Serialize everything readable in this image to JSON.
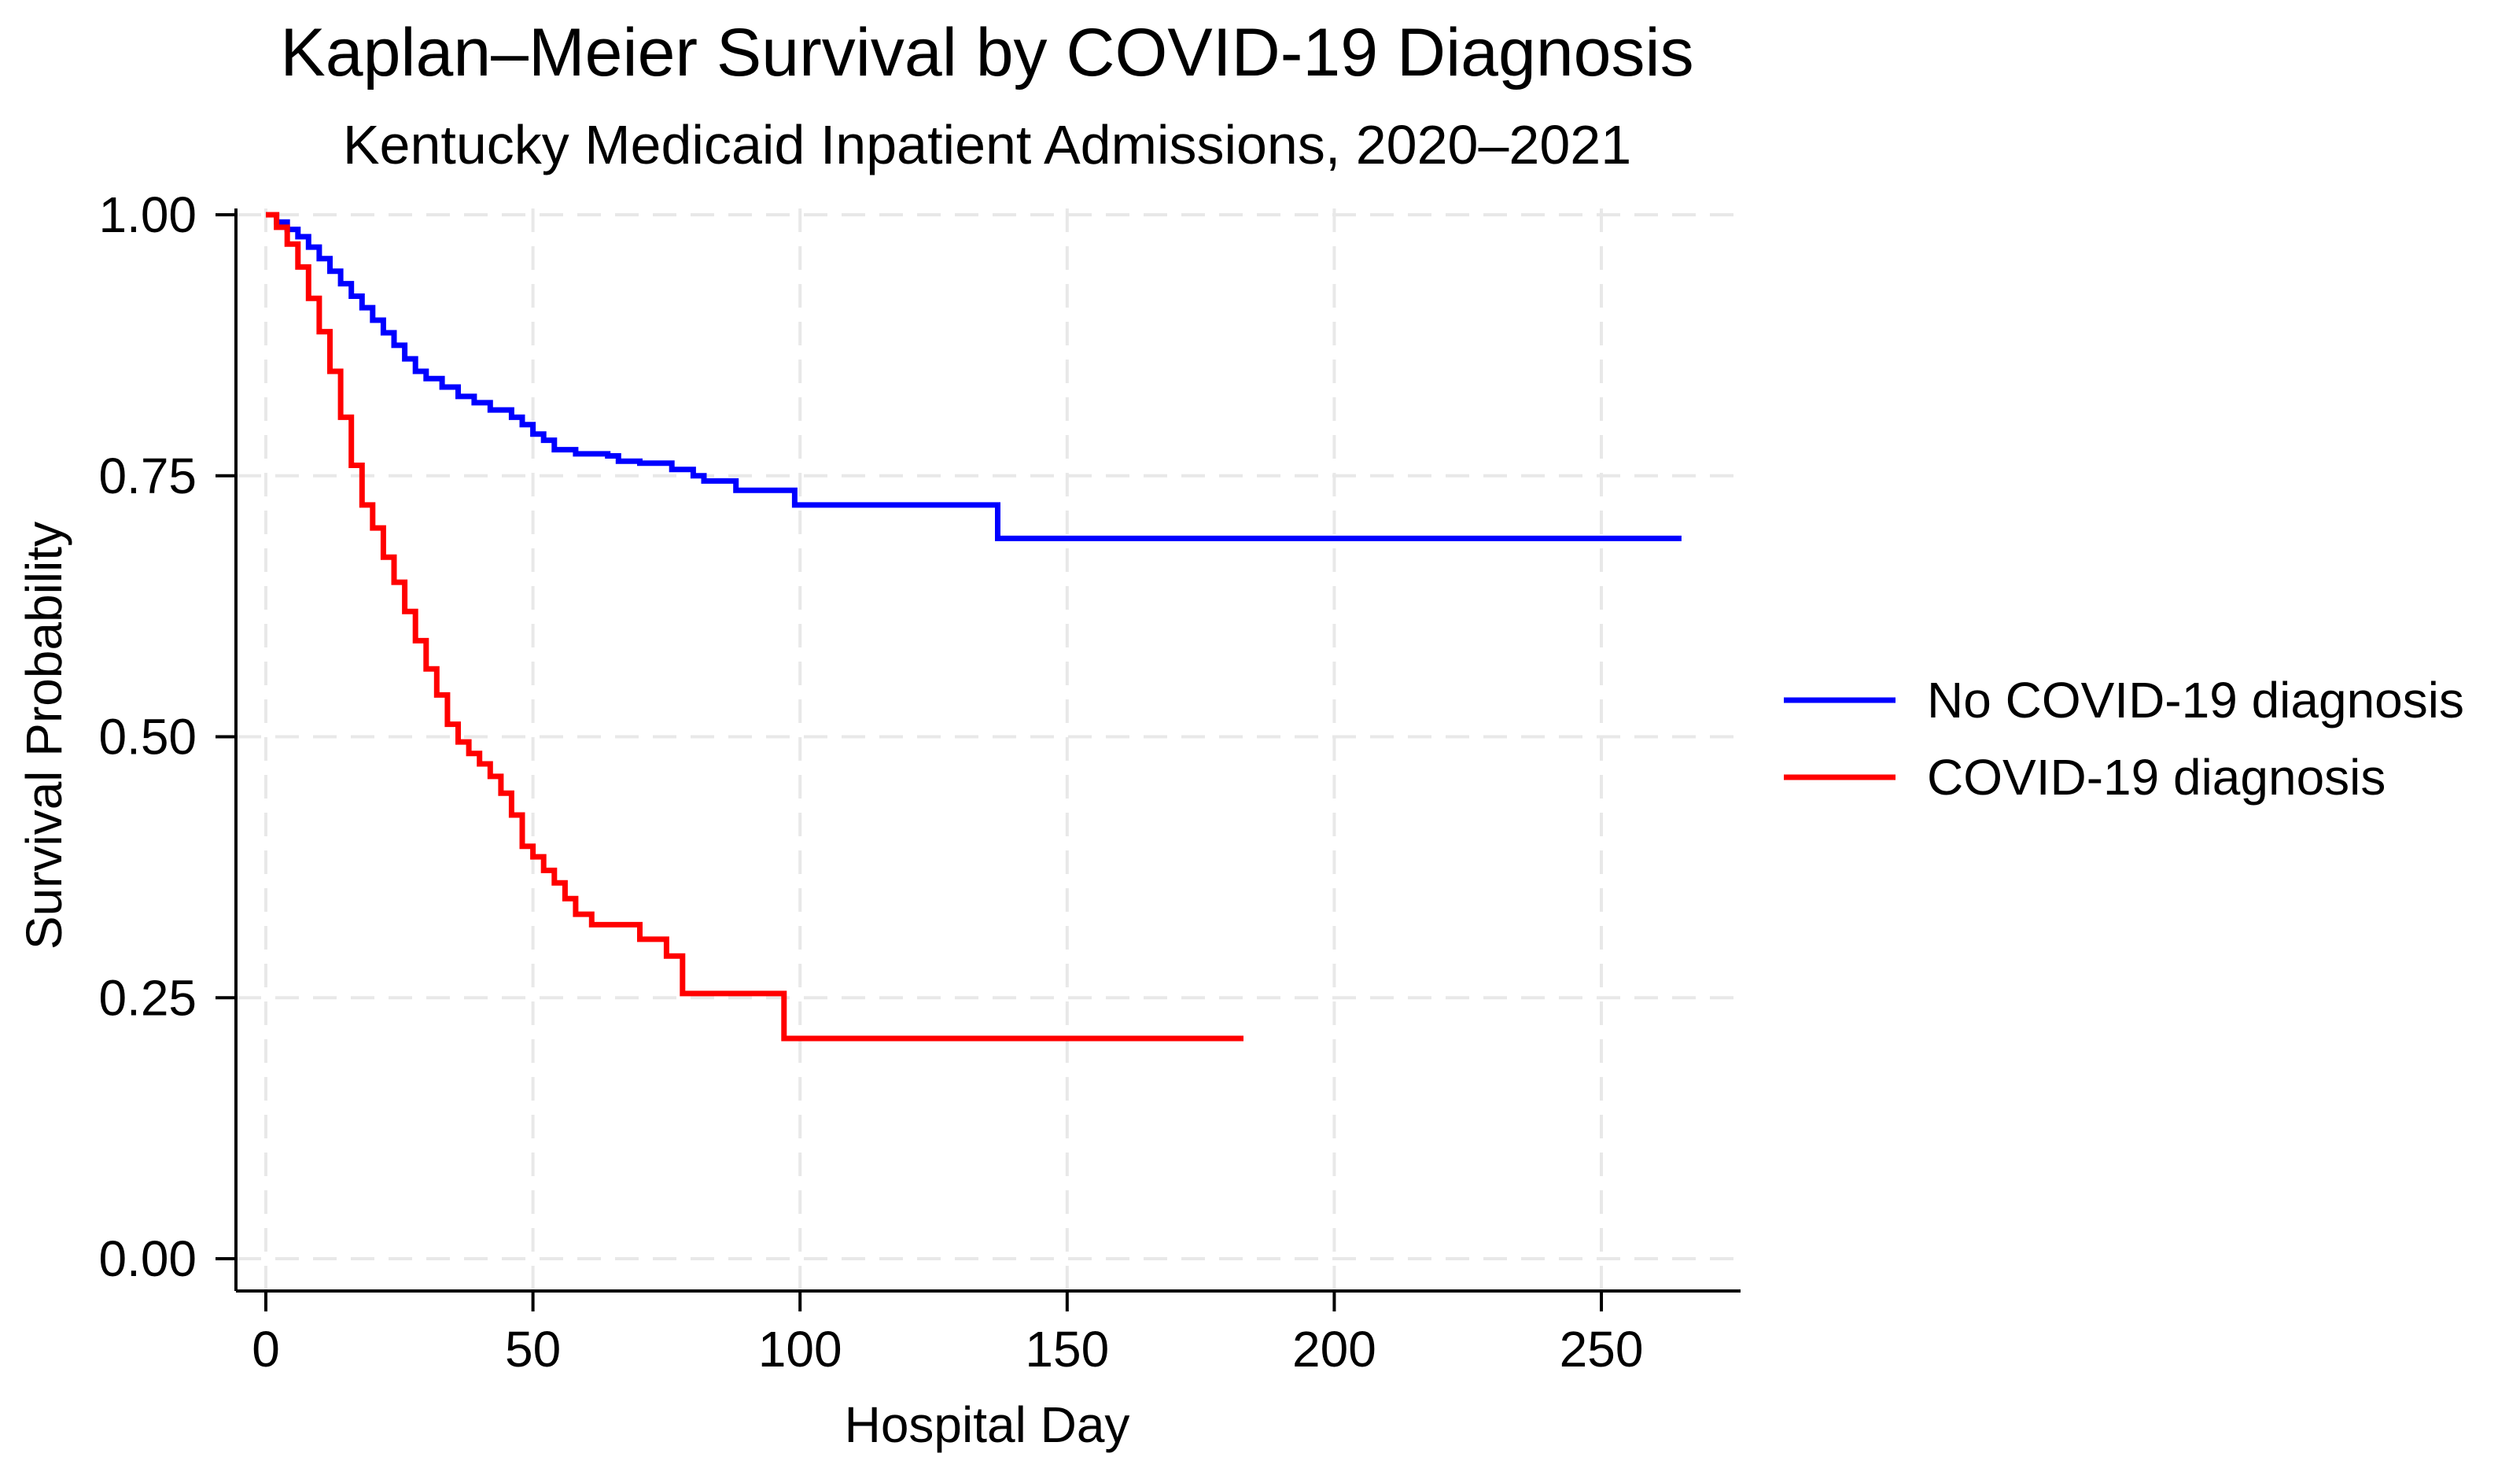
{
  "chart_data": {
    "type": "line",
    "title": "Kaplan–Meier Survival by COVID-19 Diagnosis",
    "subtitle": "Kentucky Medicaid Inpatient Admissions, 2020–2021",
    "xlabel": "Hospital Day",
    "ylabel": "Survival Probability",
    "xlim": [
      0,
      270
    ],
    "ylim": [
      0,
      1
    ],
    "x_ticks": [
      0,
      50,
      100,
      150,
      200,
      250
    ],
    "x_tick_labels": [
      "0",
      "50",
      "100",
      "150",
      "200",
      "250"
    ],
    "y_ticks": [
      0,
      0.25,
      0.5,
      0.75,
      1.0
    ],
    "y_tick_labels": [
      "0.00",
      "0.25",
      "0.50",
      "0.75",
      "1.00"
    ],
    "grid": true,
    "legend_position": "right",
    "series": [
      {
        "name": "No COVID-19 diagnosis",
        "color": "#0000ff",
        "step": true,
        "x": [
          0,
          2,
          4,
          6,
          8,
          10,
          12,
          14,
          16,
          18,
          20,
          22,
          24,
          26,
          28,
          30,
          33,
          36,
          39,
          42,
          46,
          48,
          50,
          52,
          54,
          58,
          64,
          66,
          70,
          76,
          80,
          82,
          88,
          99,
          137,
          265
        ],
        "y": [
          1.0,
          0.993,
          0.986,
          0.979,
          0.969,
          0.958,
          0.946,
          0.934,
          0.922,
          0.911,
          0.899,
          0.887,
          0.875,
          0.862,
          0.85,
          0.843,
          0.835,
          0.826,
          0.82,
          0.813,
          0.806,
          0.799,
          0.79,
          0.784,
          0.775,
          0.771,
          0.769,
          0.764,
          0.762,
          0.756,
          0.75,
          0.745,
          0.736,
          0.722,
          0.69,
          0.69
        ]
      },
      {
        "name": "COVID-19 diagnosis",
        "color": "#ff0000",
        "step": true,
        "x": [
          0,
          2,
          4,
          6,
          8,
          10,
          12,
          14,
          16,
          18,
          20,
          22,
          24,
          26,
          28,
          30,
          32,
          34,
          36,
          38,
          40,
          42,
          44,
          46,
          48,
          50,
          52,
          54,
          56,
          58,
          61,
          70,
          75,
          78,
          97,
          183
        ],
        "y": [
          1.0,
          0.988,
          0.972,
          0.95,
          0.92,
          0.888,
          0.85,
          0.806,
          0.76,
          0.722,
          0.7,
          0.672,
          0.648,
          0.62,
          0.592,
          0.565,
          0.54,
          0.512,
          0.495,
          0.484,
          0.474,
          0.462,
          0.446,
          0.425,
          0.395,
          0.385,
          0.372,
          0.36,
          0.345,
          0.33,
          0.32,
          0.306,
          0.29,
          0.254,
          0.211,
          0.211
        ]
      }
    ]
  }
}
